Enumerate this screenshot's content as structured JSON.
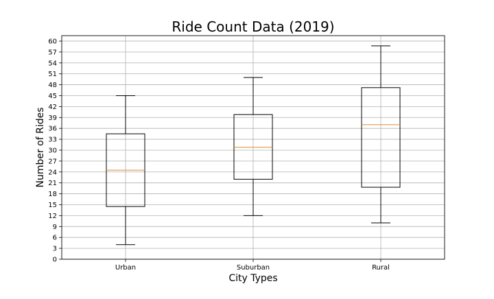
{
  "chart_data": {
    "type": "box",
    "title": "Ride Count Data (2019)",
    "xlabel": "City Types",
    "ylabel": "Number of Rides",
    "categories": [
      "Urban",
      "Suburban",
      "Rural"
    ],
    "boxes": [
      {
        "name": "Urban",
        "whisker_low": 4,
        "q1": 14.5,
        "median": 24.5,
        "q3": 34.5,
        "whisker_high": 45
      },
      {
        "name": "Suburban",
        "whisker_low": 12,
        "q1": 22,
        "median": 30.8,
        "q3": 39.8,
        "whisker_high": 50
      },
      {
        "name": "Rural",
        "whisker_low": 10,
        "q1": 19.8,
        "median": 37,
        "q3": 47.2,
        "whisker_high": 58.7
      }
    ],
    "ylim": [
      0,
      61.5
    ],
    "yticks": [
      0,
      3,
      6,
      9,
      12,
      15,
      18,
      21,
      24,
      27,
      30,
      33,
      36,
      39,
      42,
      45,
      48,
      51,
      54,
      57,
      60
    ],
    "grid": true,
    "colors": {
      "box": "#000000",
      "median": "#e08a2c",
      "grid": "#b0b0b0",
      "axes": "#000000"
    }
  }
}
